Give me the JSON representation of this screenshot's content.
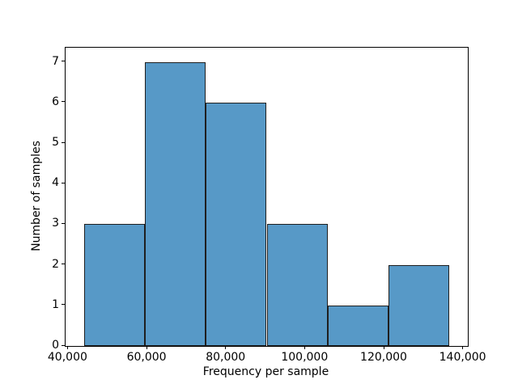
{
  "chart_data": {
    "type": "bar",
    "subtype": "histogram",
    "title": "",
    "xlabel": "Frequency per sample",
    "ylabel": "Number of samples",
    "bin_edges": [
      44000,
      59400,
      74800,
      90200,
      105600,
      121000,
      136400
    ],
    "counts": [
      3,
      7,
      6,
      3,
      1,
      2
    ],
    "xlim": [
      39300,
      141100
    ],
    "ylim": [
      0,
      7.35
    ],
    "x_ticks": [
      {
        "value": 40000,
        "label": "40,000"
      },
      {
        "value": 60000,
        "label": "60,000"
      },
      {
        "value": 80000,
        "label": "80,000"
      },
      {
        "value": 100000,
        "label": "100,000"
      },
      {
        "value": 120000,
        "label": "120,000"
      },
      {
        "value": 140000,
        "label": "140,000"
      }
    ],
    "y_ticks": [
      {
        "value": 0,
        "label": "0"
      },
      {
        "value": 1,
        "label": "1"
      },
      {
        "value": 2,
        "label": "2"
      },
      {
        "value": 3,
        "label": "3"
      },
      {
        "value": 4,
        "label": "4"
      },
      {
        "value": 5,
        "label": "5"
      },
      {
        "value": 6,
        "label": "6"
      },
      {
        "value": 7,
        "label": "7"
      }
    ],
    "grid": false,
    "legend": "none",
    "colors": {
      "bar_fill": "#5799c7",
      "bar_edge": "#1f1f1f",
      "axis": "#000000",
      "background": "#ffffff"
    }
  }
}
